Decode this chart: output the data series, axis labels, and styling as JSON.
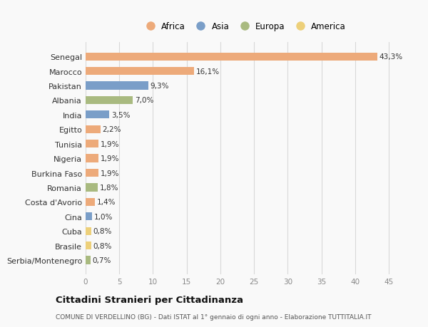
{
  "countries": [
    "Senegal",
    "Marocco",
    "Pakistan",
    "Albania",
    "India",
    "Egitto",
    "Tunisia",
    "Nigeria",
    "Burkina Faso",
    "Romania",
    "Costa d'Avorio",
    "Cina",
    "Cuba",
    "Brasile",
    "Serbia/Montenegro"
  ],
  "values": [
    43.3,
    16.1,
    9.3,
    7.0,
    3.5,
    2.2,
    1.9,
    1.9,
    1.9,
    1.8,
    1.4,
    1.0,
    0.8,
    0.8,
    0.7
  ],
  "labels": [
    "43,3%",
    "16,1%",
    "9,3%",
    "7,0%",
    "3,5%",
    "2,2%",
    "1,9%",
    "1,9%",
    "1,9%",
    "1,8%",
    "1,4%",
    "1,0%",
    "0,8%",
    "0,8%",
    "0,7%"
  ],
  "continents": [
    "Africa",
    "Africa",
    "Asia",
    "Europa",
    "Asia",
    "Africa",
    "Africa",
    "Africa",
    "Africa",
    "Europa",
    "Africa",
    "Asia",
    "America",
    "America",
    "Europa"
  ],
  "colors": {
    "Africa": "#EDAA7A",
    "Asia": "#7A9EC8",
    "Europa": "#A9BA80",
    "America": "#EDD07A"
  },
  "legend_order": [
    "Africa",
    "Asia",
    "Europa",
    "America"
  ],
  "title": "Cittadini Stranieri per Cittadinanza",
  "subtitle": "COMUNE DI VERDELLINO (BG) - Dati ISTAT al 1° gennaio di ogni anno - Elaborazione TUTTITALIA.IT",
  "xlim": [
    0,
    47
  ],
  "xticks": [
    0,
    5,
    10,
    15,
    20,
    25,
    30,
    35,
    40,
    45
  ],
  "bg_color": "#f9f9f9",
  "grid_color": "#d8d8d8"
}
